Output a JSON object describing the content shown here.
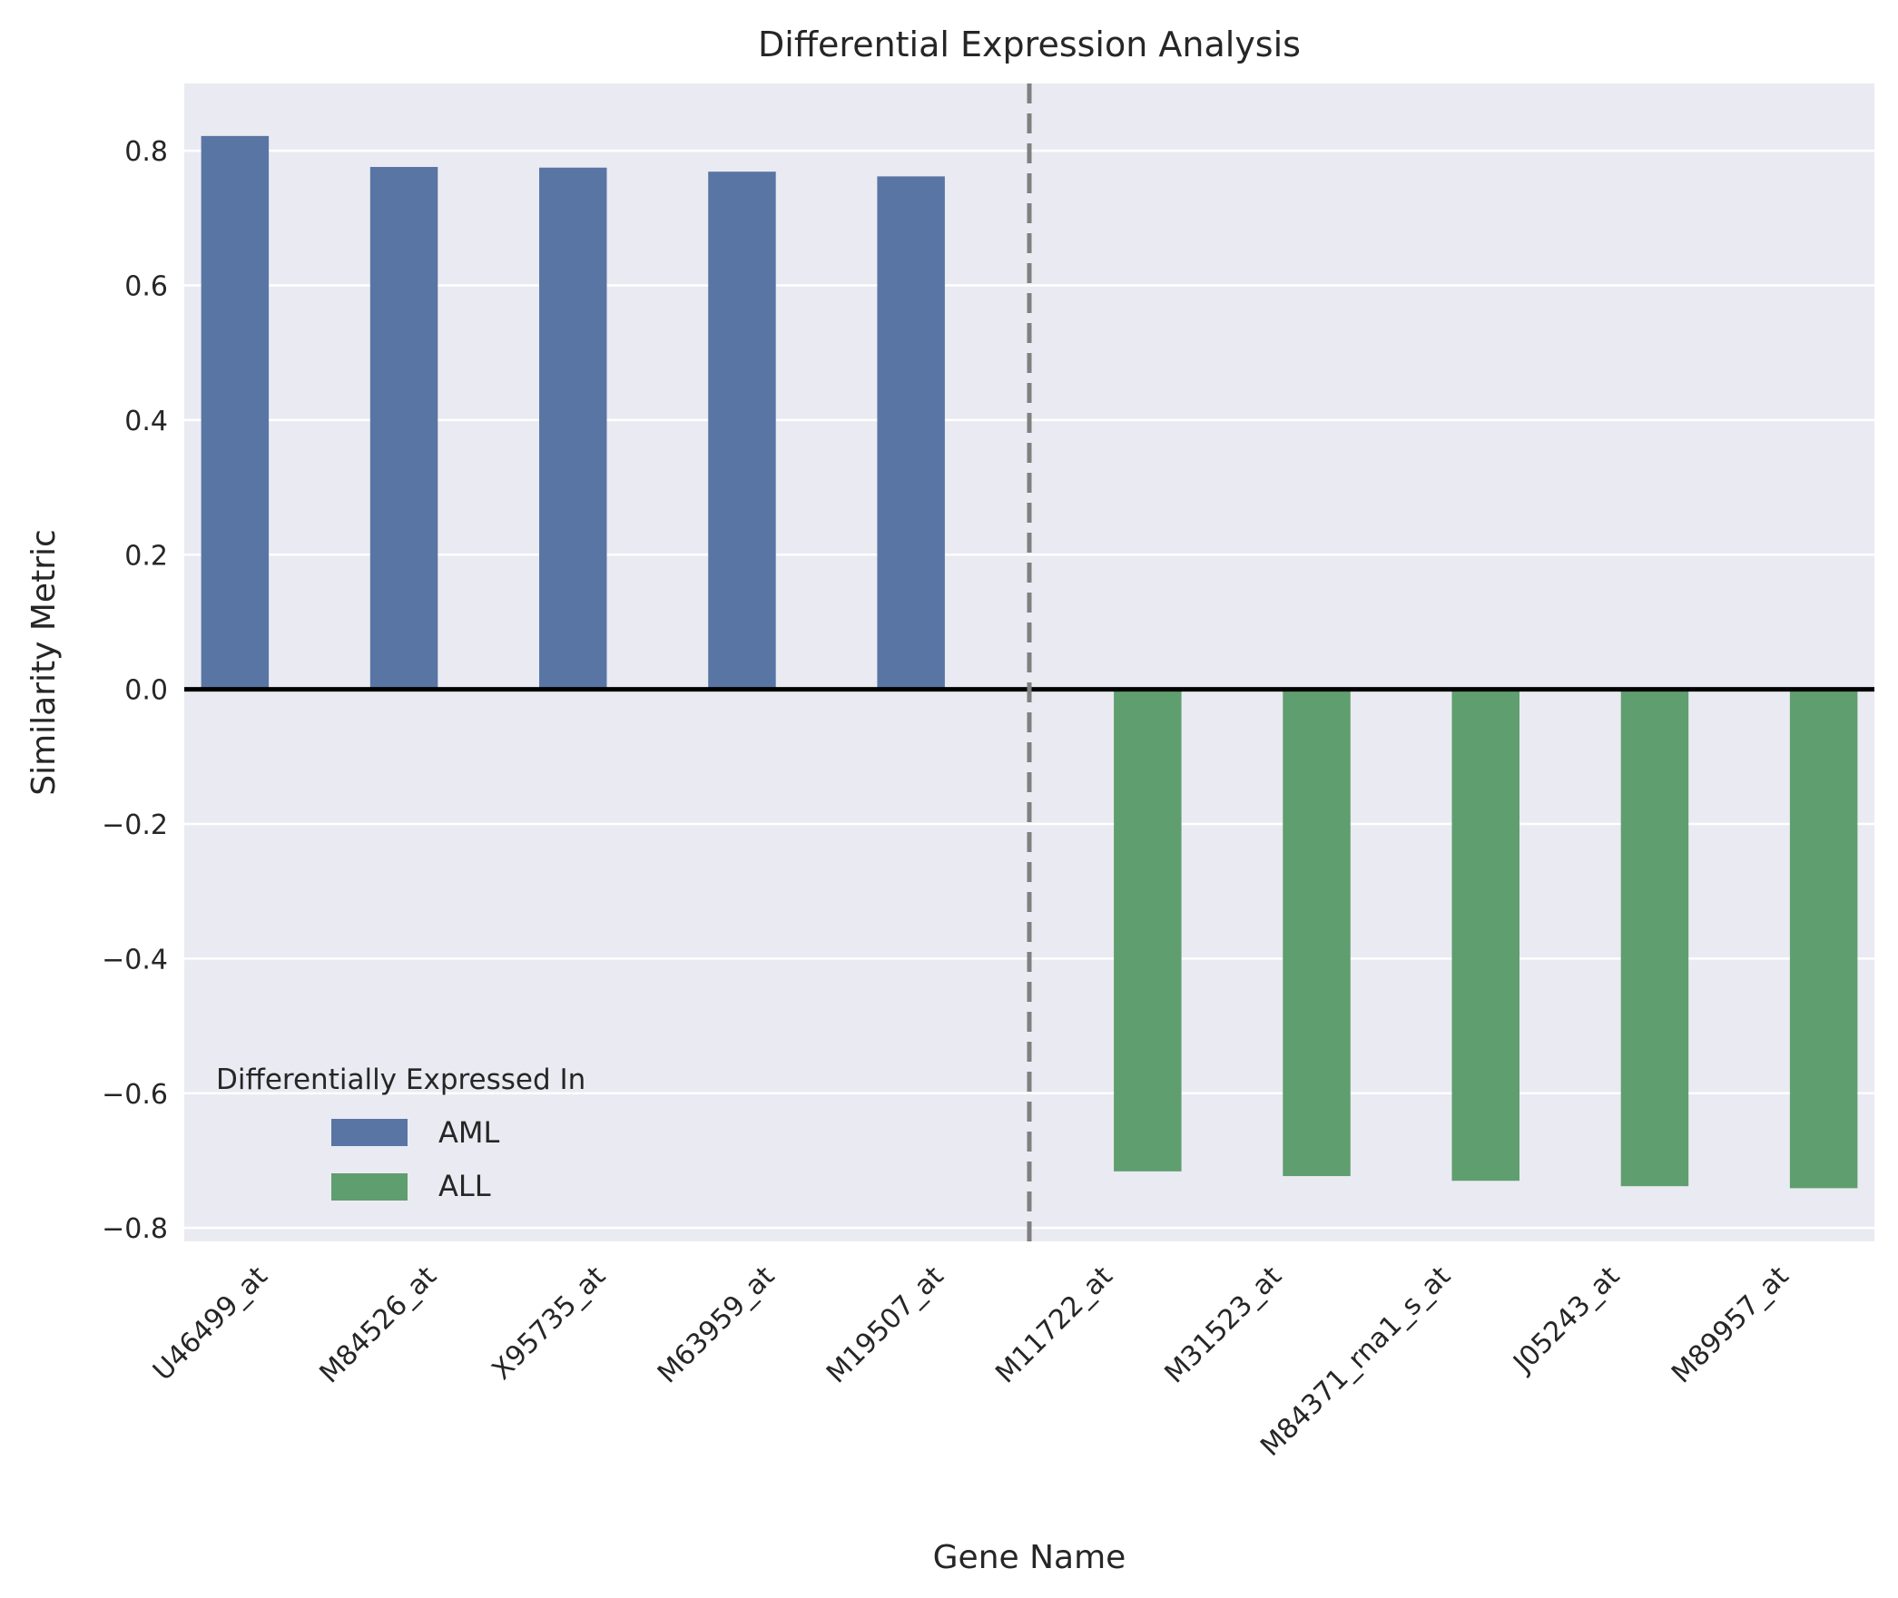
{
  "chart_data": {
    "type": "bar",
    "title": "Differential Expression Analysis",
    "xlabel": "Gene Name",
    "ylabel": "Similarity Metric",
    "categories": [
      "U46499_at",
      "M84526_at",
      "X95735_at",
      "M63959_at",
      "M19507_at",
      "M11722_at",
      "M31523_at",
      "M84371_rna1_s_at",
      "J05243_at",
      "M89957_at"
    ],
    "series": [
      {
        "name": "AML",
        "color": "#5975a4",
        "values": [
          0.822,
          0.776,
          0.775,
          0.769,
          0.762,
          null,
          null,
          null,
          null,
          null
        ]
      },
      {
        "name": "ALL",
        "color": "#5f9e6e",
        "values": [
          null,
          null,
          null,
          null,
          null,
          -0.716,
          -0.723,
          -0.73,
          -0.738,
          -0.741
        ]
      }
    ],
    "ylim": [
      -0.82,
      0.9
    ],
    "yticks": [
      0.8,
      0.6,
      0.4,
      0.2,
      0.0,
      -0.2,
      -0.4,
      -0.6,
      -0.8
    ],
    "ytick_labels": [
      "0.8",
      "0.6",
      "0.4",
      "0.2",
      "0.0",
      "−0.2",
      "−0.4",
      "−0.6",
      "−0.8"
    ],
    "grid": true,
    "zero_line": true,
    "divider_after_category_index": 4,
    "legend": {
      "title": "Differentially Expressed In",
      "placement": "lower-left",
      "entries": [
        "AML",
        "ALL"
      ]
    },
    "background_color": "#eaeaf2"
  }
}
